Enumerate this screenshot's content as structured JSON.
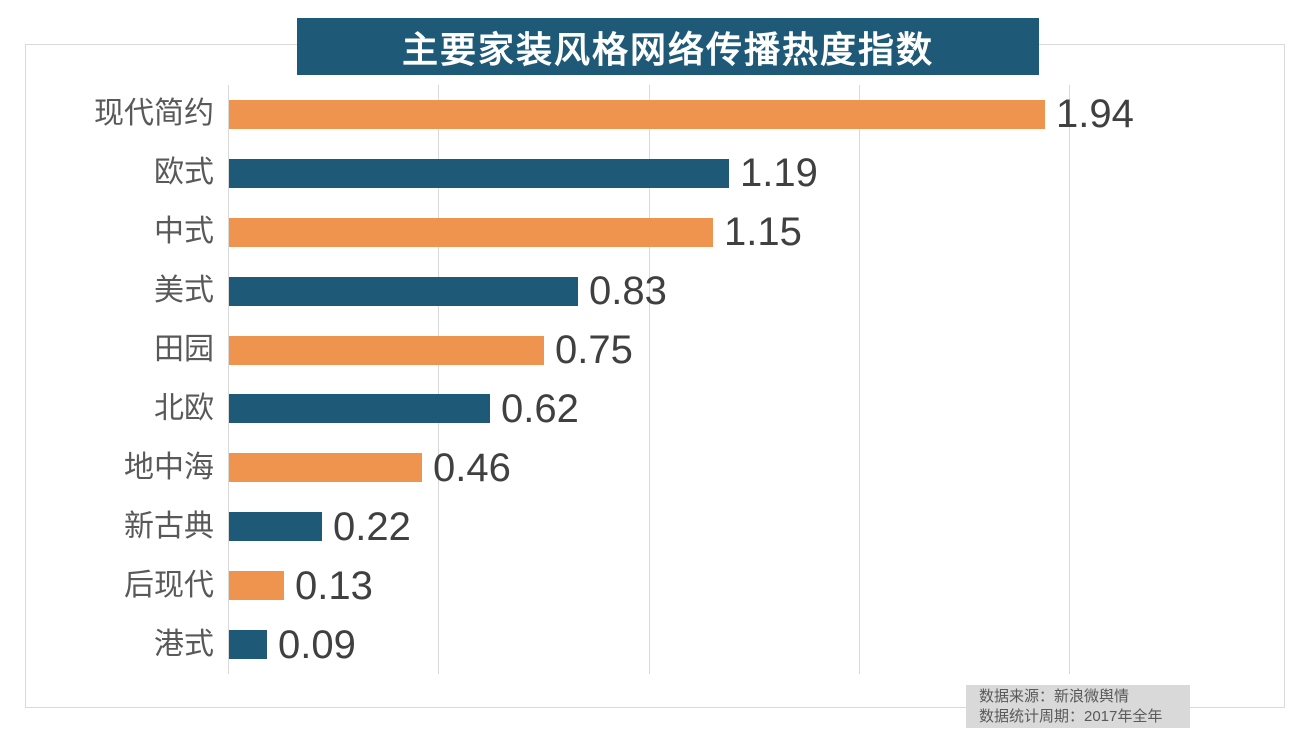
{
  "title": "主要家装风格网络传播热度指数",
  "title_banner": {
    "background": "#1e5a77",
    "text_color": "#ffffff"
  },
  "chart_data": {
    "type": "bar",
    "orientation": "horizontal",
    "title": "主要家装风格网络传播热度指数",
    "categories": [
      "现代简约",
      "欧式",
      "中式",
      "美式",
      "田园",
      "北欧",
      "地中海",
      "新古典",
      "后现代",
      "港式"
    ],
    "values": [
      1.94,
      1.19,
      1.15,
      0.83,
      0.75,
      0.62,
      0.46,
      0.22,
      0.13,
      0.09
    ],
    "value_decimals": 2,
    "xlim": [
      0,
      2
    ],
    "ticks": [
      0,
      0.5,
      1.0,
      1.5,
      2.0
    ],
    "grid": "vertical-gridlines-only",
    "legend": "none",
    "bar_colors_alternating": [
      "#ef944e",
      "#1e5a77"
    ],
    "gridline_color": "#d9d9d9",
    "category_label_color": "#595959",
    "value_label_color": "#404040"
  },
  "source_note": {
    "line1": "数据来源：新浪微舆情",
    "line2": "数据统计周期：2017年全年",
    "background": "#d9d9d9",
    "text_color": "#595959"
  }
}
